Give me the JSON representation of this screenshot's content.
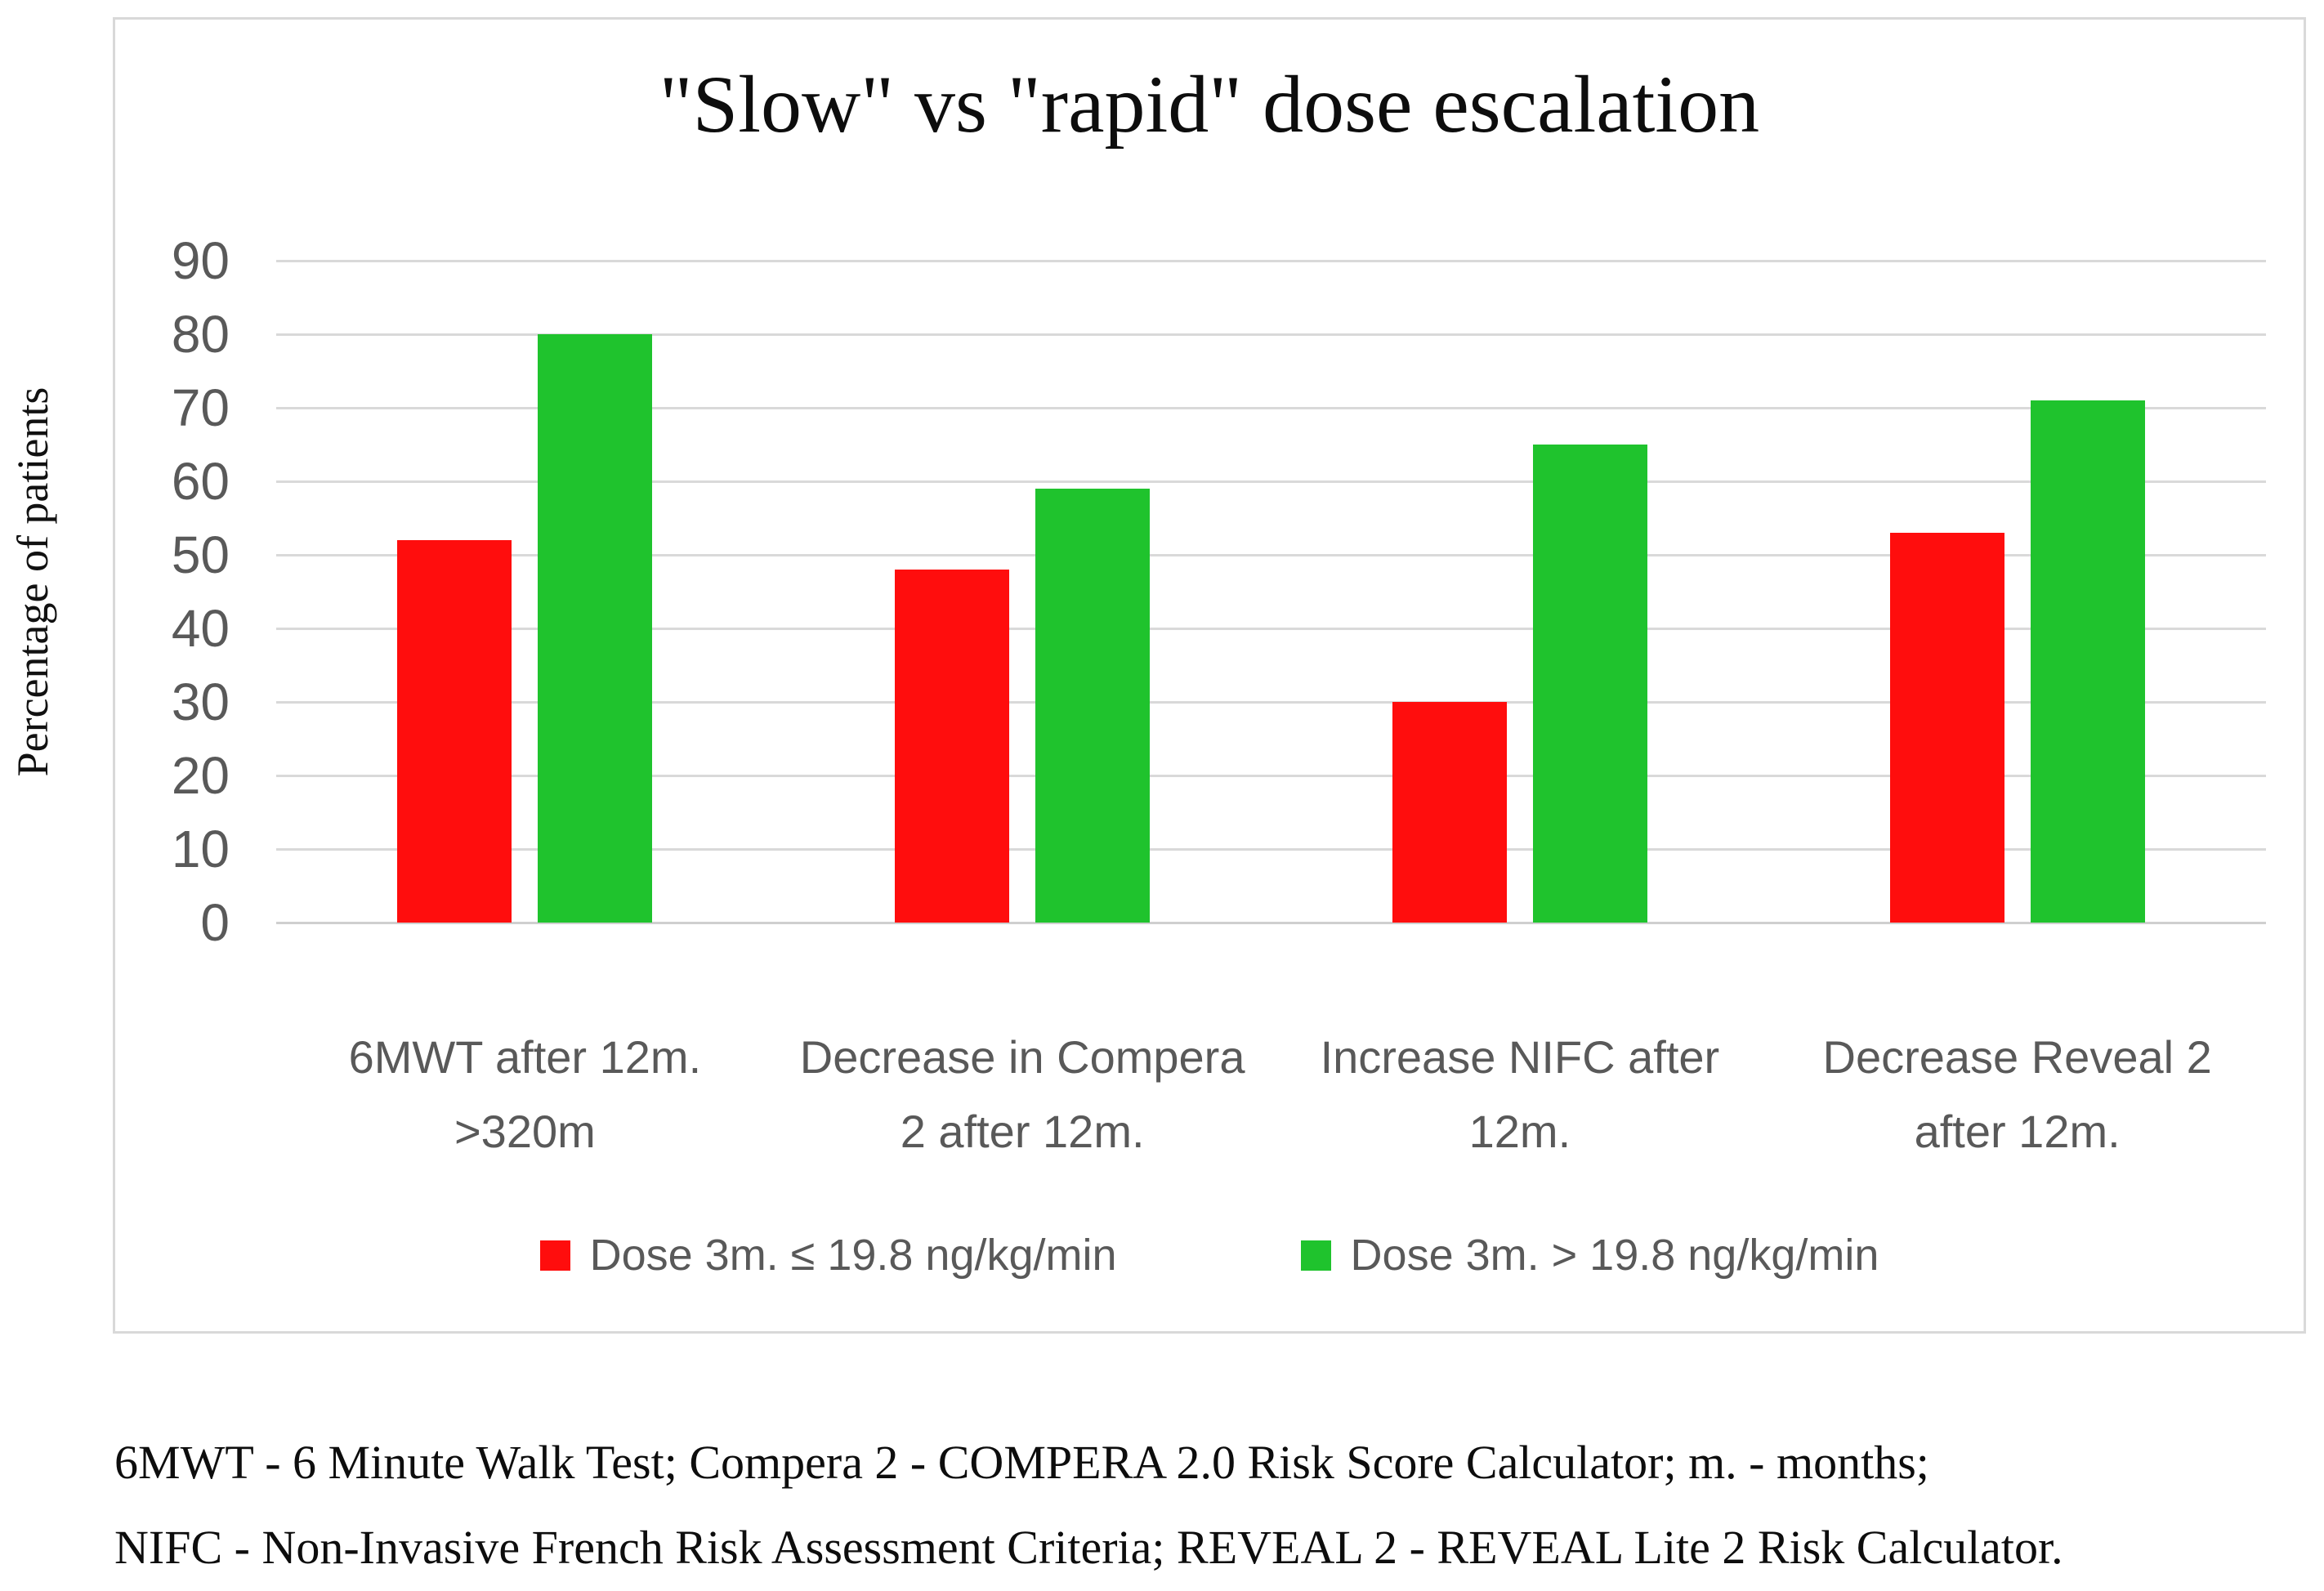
{
  "chart_data": {
    "type": "bar",
    "title": "\"Slow\" vs \"rapid\" dose escalation",
    "xlabel": "",
    "ylabel": "Percentage of patients",
    "categories": [
      "6MWT after 12m. >320m",
      "Decrease in Compera 2 after 12m.",
      "Increase NIFC after 12m.",
      "Decrease Reveal 2 after 12m."
    ],
    "series": [
      {
        "name": "Dose 3m. ≤ 19.8 ng/kg/min",
        "color": "#ff0d0d",
        "values": [
          52,
          48,
          30,
          53
        ]
      },
      {
        "name": "Dose 3m. > 19.8 ng/kg/min",
        "color": "#1fc32d",
        "values": [
          80,
          59,
          65,
          71
        ]
      }
    ],
    "ylim": [
      0,
      90
    ],
    "ytick_step": 10,
    "yticks": [
      0,
      10,
      20,
      30,
      40,
      50,
      60,
      70,
      80,
      90
    ],
    "grid": true,
    "legend_position": "bottom"
  },
  "footnote": {
    "line1": "6MWT - 6 Minute Walk Test; Compera 2 - COMPERA 2.0 Risk Score Calculator; m. - months;",
    "line2": "NIFC - Non-Invasive French Risk Assessment Criteria; REVEAL 2 - REVEAL Lite 2 Risk Calculator."
  },
  "colors": {
    "background": "#ffffff",
    "chart_border": "#d9d9d9",
    "gridline": "#d9d9d9",
    "axis_text": "#595959",
    "title_text": "#0d0d0d"
  }
}
